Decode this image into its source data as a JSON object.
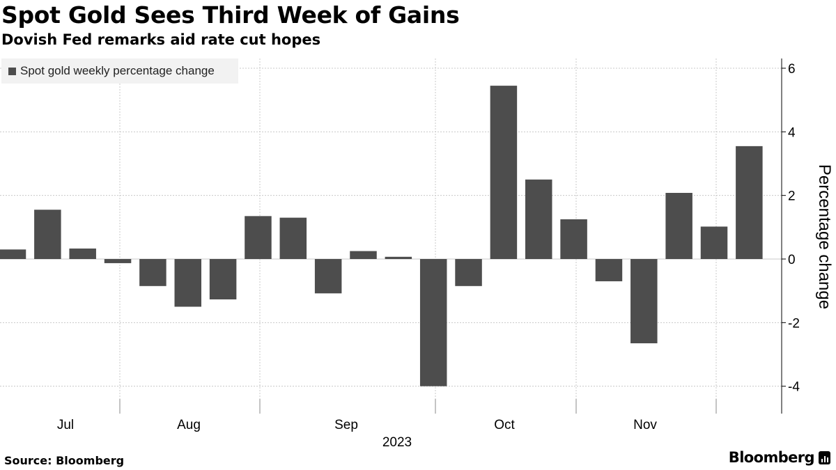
{
  "title": "Spot Gold Sees Third Week of Gains",
  "subtitle": "Dovish Fed remarks aid rate cut hopes",
  "legend_label": "Spot gold weekly percentage change",
  "source": "Source: Bloomberg",
  "brand": "Bloomberg",
  "colors": {
    "bar": "#4d4d4d",
    "grid": "#c8c8c8",
    "axis": "#000000",
    "legend_bg": "#f2f2f2"
  },
  "chart_data": {
    "type": "bar",
    "title": "Spot Gold Sees Third Week of Gains",
    "subtitle": "Dovish Fed remarks aid rate cut hopes",
    "ylabel": "Percentage change",
    "xlabel": "2023",
    "ylim": [
      -4.9,
      6.4
    ],
    "yticks": [
      6,
      4,
      2,
      0,
      -2,
      -4
    ],
    "y_axis_side": "right",
    "x_month_labels": [
      "Jul",
      "Aug",
      "Sep",
      "Oct",
      "Nov"
    ],
    "year_label": "2023",
    "grid": true,
    "legend": {
      "position": "top-left",
      "entries": [
        "Spot gold weekly percentage change"
      ]
    },
    "series": [
      {
        "name": "Spot gold weekly percentage change",
        "values": [
          0.3,
          1.55,
          0.33,
          -0.13,
          -0.85,
          -1.5,
          -1.27,
          1.35,
          1.3,
          -1.08,
          0.25,
          0.07,
          -4.0,
          -0.85,
          5.45,
          2.5,
          1.25,
          -0.7,
          -2.65,
          2.08,
          1.02,
          3.55
        ]
      }
    ]
  }
}
